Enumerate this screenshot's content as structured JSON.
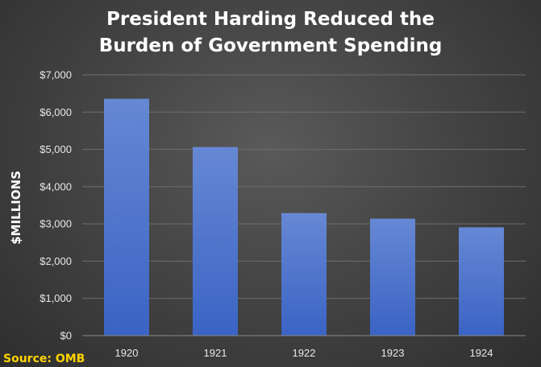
{
  "chart_data": {
    "type": "bar",
    "title_lines": [
      "President Harding Reduced the",
      "Burden of Government Spending"
    ],
    "ylabel": "$MILLIONS",
    "xlabel": "",
    "categories": [
      "1920",
      "1921",
      "1922",
      "1923",
      "1924"
    ],
    "values": [
      6358,
      5062,
      3289,
      3140,
      2908
    ],
    "ylim": [
      0,
      7000
    ],
    "yticks": [
      0,
      1000,
      2000,
      3000,
      4000,
      5000,
      6000,
      7000
    ],
    "ytick_labels": [
      "$0",
      "$1,000",
      "$2,000",
      "$3,000",
      "$4,000",
      "$5,000",
      "$6,000",
      "$7,000"
    ],
    "grid": true,
    "legend": "none",
    "bar_color_top": "#6688d4",
    "bar_color_bottom": "#3a63c4"
  },
  "source": "Source: OMB"
}
